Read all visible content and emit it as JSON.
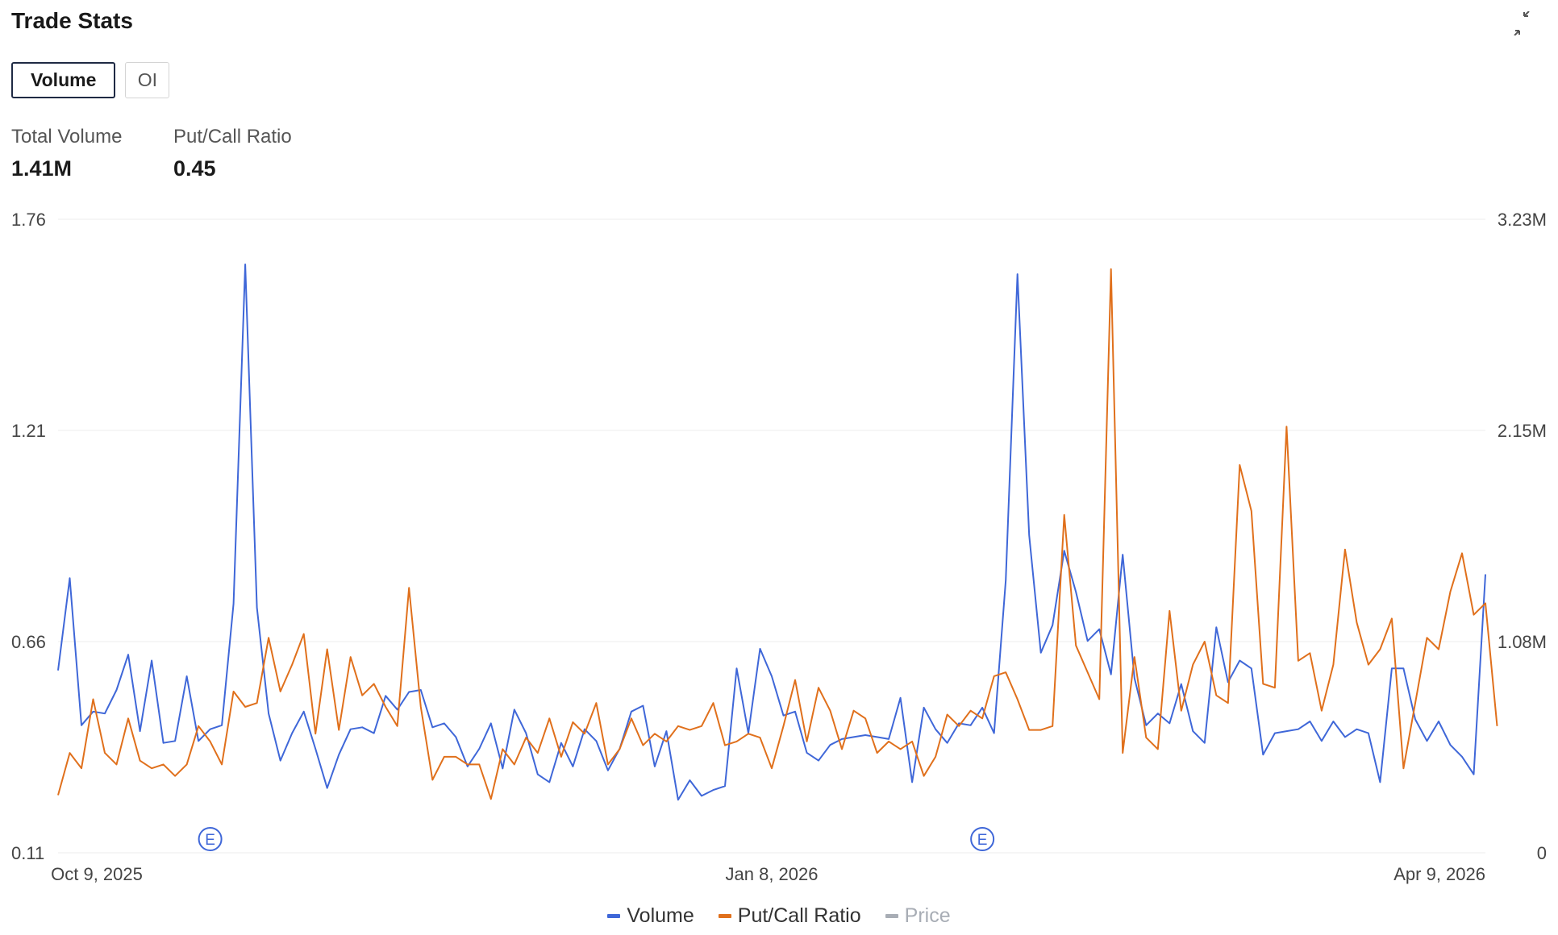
{
  "header": {
    "title": "Trade Stats",
    "expand_icon": "collapse-arrows-icon"
  },
  "tabs": [
    {
      "label": "Volume",
      "active": true
    },
    {
      "label": "OI",
      "active": false
    }
  ],
  "stats": [
    {
      "label": "Total Volume",
      "value": "1.41M"
    },
    {
      "label": "Put/Call Ratio",
      "value": "0.45"
    }
  ],
  "colors": {
    "volume": "#3f67d8",
    "put_call": "#e0701c",
    "price": "#a8adb5",
    "grid": "#ececec",
    "axis_text": "#444444"
  },
  "chart_data": {
    "type": "line",
    "title": "",
    "x_ticks": [
      "Oct 9, 2025",
      "Jan 8, 2026",
      "Apr 9, 2026"
    ],
    "left_axis": {
      "series": "Put/Call Ratio",
      "ticks": [
        "1.76",
        "1.21",
        "0.66",
        "0.11"
      ],
      "range": [
        0.11,
        1.76
      ]
    },
    "right_axis": {
      "series": "Volume",
      "ticks": [
        "3.23M",
        "2.15M",
        "1.08M",
        "0"
      ],
      "range": [
        0,
        3.23
      ]
    },
    "earnings_markers": [
      {
        "label": "E",
        "index": 13
      },
      {
        "label": "E",
        "index": 79
      }
    ],
    "legend": [
      {
        "name": "Volume",
        "color": "#3f67d8",
        "enabled": true
      },
      {
        "name": "Put/Call Ratio",
        "color": "#e0701c",
        "enabled": true
      },
      {
        "name": "Price",
        "color": "#a8adb5",
        "enabled": false
      }
    ],
    "series": [
      {
        "name": "Volume",
        "axis": "right",
        "unit": "M",
        "values": [
          0.93,
          1.4,
          0.65,
          0.72,
          0.71,
          0.83,
          1.01,
          0.62,
          0.98,
          0.56,
          0.57,
          0.9,
          0.57,
          0.63,
          0.65,
          1.27,
          3.0,
          1.25,
          0.71,
          0.47,
          0.61,
          0.72,
          0.53,
          0.33,
          0.5,
          0.63,
          0.64,
          0.61,
          0.8,
          0.73,
          0.82,
          0.83,
          0.64,
          0.66,
          0.59,
          0.44,
          0.53,
          0.66,
          0.43,
          0.73,
          0.61,
          0.4,
          0.36,
          0.56,
          0.44,
          0.63,
          0.57,
          0.42,
          0.53,
          0.72,
          0.75,
          0.44,
          0.62,
          0.27,
          0.37,
          0.29,
          0.32,
          0.34,
          0.94,
          0.61,
          1.04,
          0.9,
          0.7,
          0.72,
          0.51,
          0.47,
          0.55,
          0.58,
          0.59,
          0.6,
          0.59,
          0.58,
          0.79,
          0.36,
          0.74,
          0.63,
          0.56,
          0.66,
          0.65,
          0.74,
          0.61,
          1.39,
          2.95,
          1.62,
          1.02,
          1.16,
          1.54,
          1.33,
          1.08,
          1.14,
          0.91,
          1.52,
          0.89,
          0.65,
          0.71,
          0.66,
          0.86,
          0.62,
          0.56,
          1.15,
          0.87,
          0.98,
          0.94,
          0.5,
          0.61,
          0.62,
          0.63,
          0.67,
          0.57,
          0.67,
          0.59,
          0.63,
          0.61,
          0.36,
          0.94,
          0.94,
          0.68,
          0.57,
          0.67,
          0.55,
          0.49,
          0.4,
          1.42
        ]
      },
      {
        "name": "Put/Call Ratio",
        "axis": "left",
        "values": [
          0.26,
          0.37,
          0.33,
          0.51,
          0.37,
          0.34,
          0.46,
          0.35,
          0.33,
          0.34,
          0.31,
          0.34,
          0.44,
          0.4,
          0.34,
          0.53,
          0.49,
          0.5,
          0.67,
          0.53,
          0.6,
          0.68,
          0.42,
          0.64,
          0.43,
          0.62,
          0.52,
          0.55,
          0.49,
          0.44,
          0.8,
          0.49,
          0.3,
          0.36,
          0.36,
          0.34,
          0.34,
          0.25,
          0.38,
          0.34,
          0.41,
          0.37,
          0.46,
          0.36,
          0.45,
          0.42,
          0.5,
          0.34,
          0.38,
          0.46,
          0.39,
          0.42,
          0.4,
          0.44,
          0.43,
          0.44,
          0.5,
          0.39,
          0.4,
          0.42,
          0.41,
          0.33,
          0.44,
          0.56,
          0.4,
          0.54,
          0.48,
          0.38,
          0.48,
          0.46,
          0.37,
          0.4,
          0.38,
          0.4,
          0.31,
          0.36,
          0.47,
          0.44,
          0.48,
          0.46,
          0.57,
          0.58,
          0.51,
          0.43,
          0.43,
          0.44,
          0.99,
          0.65,
          0.58,
          0.51,
          1.63,
          0.37,
          0.62,
          0.41,
          0.38,
          0.74,
          0.48,
          0.6,
          0.66,
          0.52,
          0.5,
          1.12,
          1.0,
          0.55,
          0.54,
          1.22,
          0.61,
          0.63,
          0.48,
          0.6,
          0.9,
          0.71,
          0.6,
          0.64,
          0.72,
          0.33,
          0.5,
          0.67,
          0.64,
          0.79,
          0.89,
          0.73,
          0.76,
          0.44
        ]
      }
    ]
  }
}
